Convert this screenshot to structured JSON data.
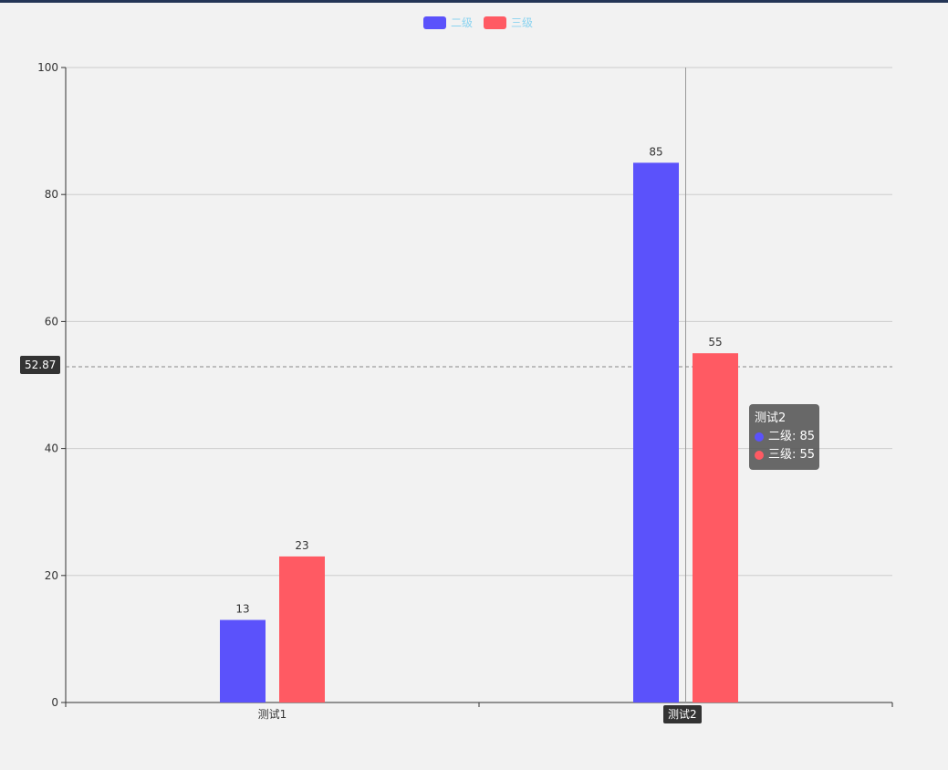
{
  "chart_data": {
    "type": "bar",
    "categories": [
      "测试1",
      "测试2"
    ],
    "series": [
      {
        "name": "二级",
        "values": [
          13,
          85
        ],
        "color": "#5b52fb"
      },
      {
        "name": "三级",
        "values": [
          23,
          55
        ],
        "color": "#ff5a63"
      }
    ],
    "ylim": [
      0,
      100
    ],
    "yticks": [
      0,
      20,
      40,
      60,
      80,
      100
    ],
    "grid": true,
    "legend_position": "top-center",
    "legend_text_color": "#8ad3f0",
    "axis_pointer": {
      "y_value": "52.87",
      "x_category": "测试2"
    },
    "tooltip": {
      "title": "测试2",
      "rows": [
        "二级: 85",
        "三级: 55"
      ]
    }
  }
}
